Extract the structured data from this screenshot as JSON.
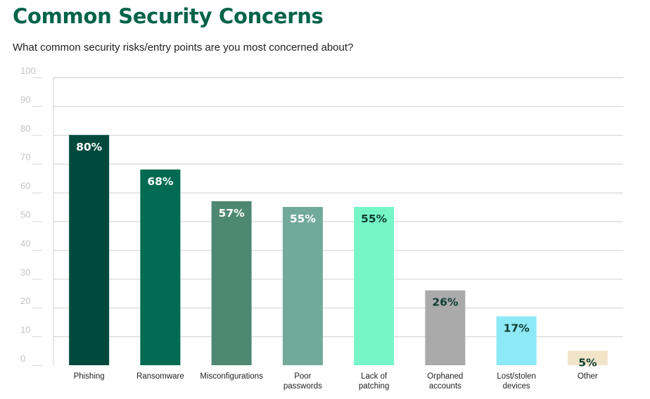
{
  "chart_data": {
    "type": "bar",
    "title": "Common Security Concerns",
    "subtitle": "What common security risks/entry points are you most concerned about?",
    "ylim": [
      0,
      100
    ],
    "yticks": [
      0,
      10,
      20,
      30,
      40,
      50,
      60,
      70,
      80,
      90,
      100
    ],
    "grid": true,
    "categories": [
      [
        "Phishing"
      ],
      [
        "Ransomware"
      ],
      [
        "Misconfigurations"
      ],
      [
        "Poor",
        "passwords"
      ],
      [
        "Lack of",
        "patching"
      ],
      [
        "Orphaned",
        "accounts"
      ],
      [
        "Lost/stolen",
        "devices"
      ],
      [
        "Other"
      ]
    ],
    "values": [
      80,
      68,
      57,
      55,
      55,
      26,
      17,
      5
    ],
    "labels": [
      "80%",
      "68%",
      "57%",
      "55%",
      "55%",
      "26%",
      "17%",
      "5%"
    ],
    "colors": [
      "#004a3d",
      "#006b52",
      "#4e8873",
      "#72aa9a",
      "#76f5c8",
      "#aaaaaa",
      "#8ee9f6",
      "#f2e4c9"
    ],
    "label_colors": [
      "#ffffff",
      "#ffffff",
      "#ffffff",
      "#ffffff",
      "#0f3d33",
      "#0f3d33",
      "#0f3d33",
      "#0f3d33"
    ]
  }
}
